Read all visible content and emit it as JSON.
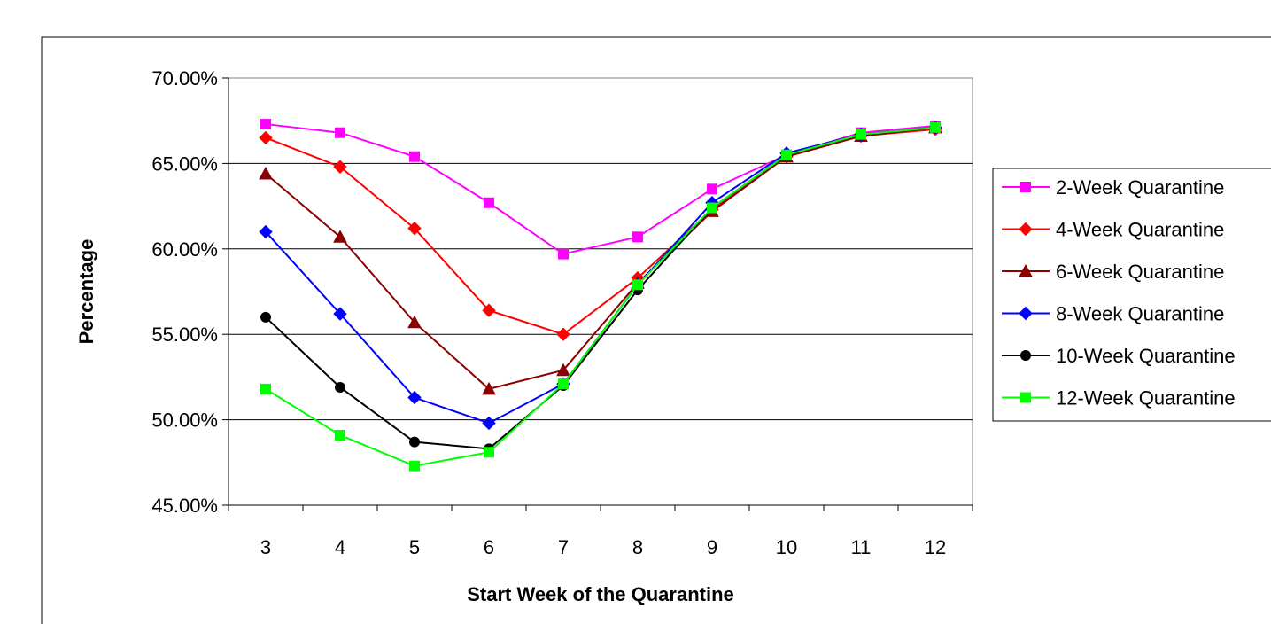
{
  "chart_data": {
    "type": "line",
    "title": "",
    "xlabel": "Start Week of the Quarantine",
    "ylabel": "Percentage",
    "categories": [
      "3",
      "4",
      "5",
      "6",
      "7",
      "8",
      "9",
      "10",
      "11",
      "12"
    ],
    "ylim": [
      0.45,
      0.7
    ],
    "yticks": [
      "45.00%",
      "50.00%",
      "55.00%",
      "60.00%",
      "65.00%",
      "70.00%"
    ],
    "grid": true,
    "legend_position": "right",
    "series": [
      {
        "name": "2-Week Quarantine",
        "color": "#ff00ff",
        "marker": "square",
        "values": [
          0.673,
          0.668,
          0.654,
          0.627,
          0.597,
          0.607,
          0.635,
          0.655,
          0.668,
          0.672
        ]
      },
      {
        "name": "4-Week Quarantine",
        "color": "#ff0000",
        "marker": "diamond",
        "values": [
          0.665,
          0.648,
          0.612,
          0.564,
          0.55,
          0.583,
          0.623,
          0.654,
          0.666,
          0.67
        ]
      },
      {
        "name": "6-Week Quarantine",
        "color": "#8b0000",
        "marker": "triangle",
        "values": [
          0.644,
          0.607,
          0.557,
          0.518,
          0.529,
          0.58,
          0.622,
          0.654,
          0.666,
          0.671
        ]
      },
      {
        "name": "8-Week Quarantine",
        "color": "#0000ff",
        "marker": "diamond",
        "values": [
          0.61,
          0.562,
          0.513,
          0.498,
          0.521,
          0.579,
          0.627,
          0.656,
          0.667,
          0.671
        ]
      },
      {
        "name": "10-Week Quarantine",
        "color": "#000000",
        "marker": "circle",
        "values": [
          0.56,
          0.519,
          0.487,
          0.483,
          0.52,
          0.576,
          0.624,
          0.655,
          0.667,
          0.671
        ]
      },
      {
        "name": "12-Week Quarantine",
        "color": "#00ff00",
        "marker": "square",
        "values": [
          0.518,
          0.491,
          0.473,
          0.481,
          0.521,
          0.579,
          0.624,
          0.655,
          0.667,
          0.671
        ]
      }
    ]
  }
}
